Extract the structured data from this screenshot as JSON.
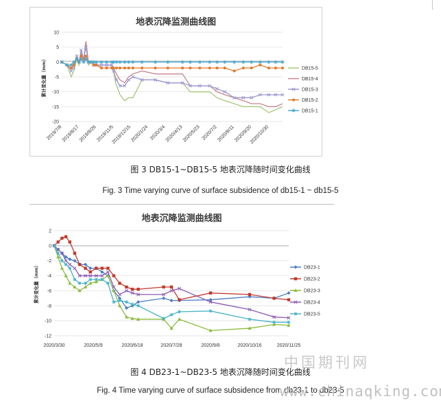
{
  "charts": [
    {
      "id": "chart1",
      "title": "地表沉降监测曲线图",
      "caption_cn": "图 3 DB15-1~DB15-5 地表沉降随时间变化曲线",
      "caption_en": "Fig. 3 Time varying curve of surface subsidence of db15-1 ~ db15-5",
      "ylabel": "累计变化量（mm）"
    },
    {
      "id": "chart2",
      "title": "地表沉降监测曲线图",
      "caption_cn": "图 4 DB23-1~DB23-5 地表沉降随时间变化曲线",
      "caption_en": "Fig. 4 Time varying curve of surface subsidence from db23-1 to db23-5",
      "ylabel": "累计变化量（mm）"
    }
  ],
  "watermark": {
    "cn": "中国期刊网",
    "url": "www.chinaqking.com"
  },
  "chart_data": [
    {
      "type": "line",
      "title": "地表沉降监测曲线图",
      "ylabel": "累计变化量（mm）",
      "ylim": [
        -20,
        10
      ],
      "yticks": [
        10,
        5,
        0,
        -5,
        -10,
        -15,
        -20
      ],
      "x_range": [
        "2019-07-08",
        "2020-12-01"
      ],
      "x_tick_labels": [
        "2019/7/8",
        "2019/8/17",
        "2019/9/26",
        "2019/11/5",
        "2019/12/15",
        "2020/1/24",
        "2020/3/4",
        "2020/4/13",
        "2020/5/23",
        "2020/7/2",
        "2020/8/11",
        "2020/9/20",
        "2020/10/30"
      ],
      "grid": true,
      "legend": "right",
      "series": [
        {
          "name": "DB15-5",
          "color": "#a8c67a",
          "marker": "none",
          "x": [
            "2019-07-08",
            "2019-07-20",
            "2019-07-30",
            "2019-08-05",
            "2019-08-12",
            "2019-08-17",
            "2019-08-22",
            "2019-08-28",
            "2019-09-02",
            "2019-09-08",
            "2019-09-14",
            "2019-09-20",
            "2019-09-26",
            "2019-10-08",
            "2019-10-20",
            "2019-11-01",
            "2019-11-05",
            "2019-11-10",
            "2019-11-20",
            "2019-12-01",
            "2019-12-10",
            "2019-12-20",
            "2020-01-10",
            "2020-02-10",
            "2020-03-10",
            "2020-04-13",
            "2020-05-01",
            "2020-05-23",
            "2020-06-15",
            "2020-07-02",
            "2020-07-20",
            "2020-08-11",
            "2020-09-01",
            "2020-09-20",
            "2020-10-10",
            "2020-10-30",
            "2020-11-15",
            "2020-12-01"
          ],
          "y": [
            0,
            -1,
            -5,
            -3,
            1,
            -1,
            3,
            1,
            6,
            -1,
            0,
            -1,
            -1,
            -1,
            -1,
            -1,
            -3,
            -7,
            -11,
            -13,
            -12,
            -12,
            -6,
            -6,
            -7,
            -7,
            -10,
            -10,
            -10,
            -12,
            -13,
            -14,
            -15,
            -15,
            -15,
            -17,
            -16,
            -15
          ]
        },
        {
          "name": "DB15-4",
          "color": "#c8878f",
          "marker": "none",
          "x": [
            "2019-07-08",
            "2019-07-20",
            "2019-07-30",
            "2019-08-05",
            "2019-08-12",
            "2019-08-17",
            "2019-08-22",
            "2019-08-28",
            "2019-09-02",
            "2019-09-08",
            "2019-09-14",
            "2019-09-20",
            "2019-09-26",
            "2019-10-08",
            "2019-10-20",
            "2019-11-01",
            "2019-11-05",
            "2019-11-12",
            "2019-11-20",
            "2019-12-01",
            "2019-12-10",
            "2019-12-20",
            "2020-01-10",
            "2020-02-10",
            "2020-03-10",
            "2020-04-13",
            "2020-05-01",
            "2020-05-23",
            "2020-06-15",
            "2020-07-02",
            "2020-07-20",
            "2020-08-11",
            "2020-09-01",
            "2020-09-20",
            "2020-10-10",
            "2020-10-30",
            "2020-11-15",
            "2020-12-01"
          ],
          "y": [
            0,
            -1,
            -2,
            -1,
            2,
            0,
            3,
            1,
            7,
            0,
            0,
            -1,
            -1,
            -1,
            -1,
            -1,
            -2,
            -4,
            -6,
            -7,
            -5,
            -4,
            -3,
            -4,
            -4,
            -4,
            -8,
            -8,
            -8,
            -10,
            -11,
            -12,
            -13,
            -14,
            -14,
            -15,
            -15,
            -14
          ]
        },
        {
          "name": "DB15-3",
          "color": "#9a97d3",
          "marker": "x",
          "x": [
            "2019-07-08",
            "2019-07-20",
            "2019-07-30",
            "2019-08-05",
            "2019-08-12",
            "2019-08-17",
            "2019-08-22",
            "2019-08-28",
            "2019-09-02",
            "2019-09-08",
            "2019-09-14",
            "2019-09-20",
            "2019-09-26",
            "2019-10-08",
            "2019-10-20",
            "2019-11-01",
            "2019-11-05",
            "2019-11-12",
            "2019-11-20",
            "2019-12-01",
            "2019-12-10",
            "2019-12-20",
            "2020-01-10",
            "2020-02-10",
            "2020-03-10",
            "2020-04-13",
            "2020-05-01",
            "2020-05-23",
            "2020-06-15",
            "2020-07-02",
            "2020-07-20",
            "2020-08-11",
            "2020-09-01",
            "2020-09-20",
            "2020-10-10",
            "2020-10-30",
            "2020-11-15",
            "2020-12-01"
          ],
          "y": [
            0,
            -1,
            -3,
            -2,
            2,
            0,
            4,
            1,
            5,
            0,
            0,
            -1,
            -1,
            -1,
            -1,
            -1,
            -3,
            -6,
            -8,
            -8,
            -6,
            -5,
            -6,
            -6,
            -7,
            -7,
            -8,
            -8,
            -8,
            -9,
            -10,
            -12,
            -12,
            -12,
            -11,
            -11,
            -11,
            -11
          ]
        },
        {
          "name": "DB15-2",
          "color": "#e07a2a",
          "marker": "dot",
          "x": [
            "2019-07-08",
            "2019-07-20",
            "2019-07-30",
            "2019-08-05",
            "2019-08-12",
            "2019-08-17",
            "2019-08-22",
            "2019-08-28",
            "2019-09-02",
            "2019-09-08",
            "2019-09-14",
            "2019-09-20",
            "2019-09-26",
            "2019-10-08",
            "2019-10-20",
            "2019-11-01",
            "2019-11-05",
            "2019-11-12",
            "2019-11-20",
            "2019-12-01",
            "2019-12-10",
            "2019-12-20",
            "2020-01-10",
            "2020-02-10",
            "2020-03-10",
            "2020-04-13",
            "2020-05-01",
            "2020-05-23",
            "2020-06-15",
            "2020-07-02",
            "2020-07-20",
            "2020-08-11",
            "2020-09-01",
            "2020-09-20",
            "2020-10-10",
            "2020-10-30",
            "2020-11-15",
            "2020-12-01"
          ],
          "y": [
            0,
            -1,
            -2,
            -1,
            1,
            0,
            2,
            1,
            2,
            0,
            0,
            -1,
            -1,
            -2,
            -2,
            -2,
            -2,
            -2,
            -2,
            -2,
            -2,
            -2,
            -2,
            -2,
            -2,
            -2,
            -2,
            -2,
            -2,
            -2,
            -2,
            -3,
            -2,
            -2,
            -1,
            -2,
            -2,
            -2
          ]
        },
        {
          "name": "DB15-1",
          "color": "#4aa8cf",
          "marker": "star",
          "x": [
            "2019-07-08",
            "2019-07-20",
            "2019-07-30",
            "2019-08-05",
            "2019-08-12",
            "2019-08-17",
            "2019-08-22",
            "2019-08-28",
            "2019-09-02",
            "2019-09-08",
            "2019-09-14",
            "2019-09-20",
            "2019-09-26",
            "2019-10-08",
            "2019-10-20",
            "2019-11-01",
            "2019-11-05",
            "2019-11-12",
            "2019-11-20",
            "2019-12-01",
            "2019-12-10",
            "2019-12-20",
            "2020-01-10",
            "2020-02-10",
            "2020-03-10",
            "2020-04-13",
            "2020-05-01",
            "2020-05-23",
            "2020-06-15",
            "2020-07-02",
            "2020-07-20",
            "2020-08-11",
            "2020-09-01",
            "2020-09-20",
            "2020-10-10",
            "2020-10-30",
            "2020-11-15",
            "2020-12-01"
          ],
          "y": [
            0,
            -1,
            -1,
            0,
            1,
            0,
            1,
            0,
            1,
            0,
            0,
            0,
            0,
            0,
            0,
            0,
            0,
            0,
            0,
            0,
            0,
            0,
            0,
            0,
            0,
            0,
            0,
            0,
            0,
            0,
            0,
            0,
            0,
            0,
            0,
            0,
            0,
            0
          ]
        }
      ]
    },
    {
      "type": "line",
      "title": "地表沉降监测曲线图",
      "ylabel": "累计变化量（mm）",
      "ylim": [
        -12,
        2
      ],
      "yticks": [
        2,
        0,
        -2,
        -4,
        -6,
        -8,
        -10,
        -12
      ],
      "x_range": [
        "2020-03-30",
        "2020-11-25"
      ],
      "x_tick_labels": [
        "2020/3/30",
        "2020/5/9",
        "2020/6/18",
        "2020/7/28",
        "2020/9/6",
        "2020/10/16",
        "2020/11/25"
      ],
      "grid": true,
      "legend": "right",
      "series": [
        {
          "name": "DB23-1",
          "color": "#4a7ec2",
          "marker": "diamond",
          "x": [
            "2020-03-30",
            "2020-04-03",
            "2020-04-07",
            "2020-04-11",
            "2020-04-15",
            "2020-04-20",
            "2020-04-25",
            "2020-05-01",
            "2020-05-06",
            "2020-05-12",
            "2020-05-18",
            "2020-05-24",
            "2020-05-30",
            "2020-06-05",
            "2020-06-12",
            "2020-06-18",
            "2020-06-24",
            "2020-07-20",
            "2020-07-28",
            "2020-08-05",
            "2020-09-06",
            "2020-10-16",
            "2020-11-10",
            "2020-11-25"
          ],
          "y": [
            0,
            -0.5,
            -1,
            -1.5,
            -1.8,
            -2,
            -2.5,
            -2.5,
            -3,
            -3,
            -3.5,
            -4,
            -6,
            -7,
            -8.3,
            -8,
            -7.5,
            -7,
            -7.3,
            -7.3,
            -7.2,
            -6.8,
            -7,
            -6.3
          ]
        },
        {
          "name": "DB23-2",
          "color": "#c0392b",
          "marker": "square",
          "x": [
            "2020-03-30",
            "2020-04-03",
            "2020-04-07",
            "2020-04-11",
            "2020-04-15",
            "2020-04-20",
            "2020-04-25",
            "2020-05-01",
            "2020-05-06",
            "2020-05-12",
            "2020-05-18",
            "2020-05-24",
            "2020-05-30",
            "2020-06-05",
            "2020-06-12",
            "2020-06-18",
            "2020-06-24",
            "2020-07-20",
            "2020-07-28",
            "2020-08-05",
            "2020-09-06",
            "2020-10-16",
            "2020-11-10",
            "2020-11-25"
          ],
          "y": [
            0,
            0.5,
            1,
            1.2,
            0.5,
            -1,
            -2.5,
            -3,
            -3.5,
            -3,
            -3,
            -3,
            -4,
            -5,
            -5.5,
            -5.8,
            -5.8,
            -5.5,
            -5.5,
            -7.2,
            -6.3,
            -6.5,
            -7,
            -7.2
          ]
        },
        {
          "name": "DB23-3",
          "color": "#8cbb3e",
          "marker": "triangle",
          "x": [
            "2020-03-30",
            "2020-04-03",
            "2020-04-07",
            "2020-04-11",
            "2020-04-15",
            "2020-04-20",
            "2020-04-25",
            "2020-05-01",
            "2020-05-06",
            "2020-05-12",
            "2020-05-18",
            "2020-05-24",
            "2020-05-30",
            "2020-06-05",
            "2020-06-12",
            "2020-06-18",
            "2020-06-24",
            "2020-07-20",
            "2020-07-28",
            "2020-08-05",
            "2020-09-06",
            "2020-10-16",
            "2020-11-10",
            "2020-11-25"
          ],
          "y": [
            0,
            -1.5,
            -3,
            -4,
            -5,
            -5.5,
            -6,
            -5.5,
            -5,
            -4.8,
            -4.5,
            -4,
            -6,
            -8,
            -9.5,
            -9.7,
            -9.8,
            -9.8,
            -11,
            -9.8,
            -11.3,
            -11,
            -10.5,
            -10.6
          ]
        },
        {
          "name": "DB23-4",
          "color": "#8a5ab3",
          "marker": "x",
          "x": [
            "2020-03-30",
            "2020-04-03",
            "2020-04-07",
            "2020-04-11",
            "2020-04-15",
            "2020-04-20",
            "2020-04-25",
            "2020-05-01",
            "2020-05-06",
            "2020-05-12",
            "2020-05-18",
            "2020-05-24",
            "2020-05-30",
            "2020-06-05",
            "2020-06-12",
            "2020-06-18",
            "2020-06-24",
            "2020-07-20",
            "2020-07-28",
            "2020-08-05",
            "2020-09-06",
            "2020-10-16",
            "2020-11-10",
            "2020-11-25"
          ],
          "y": [
            0,
            -0.5,
            -1,
            -2,
            -2.5,
            -3,
            -4,
            -4,
            -4,
            -4,
            -4,
            -3.5,
            -5.5,
            -6.5,
            -6,
            -6.3,
            -6.5,
            -6.5,
            -6,
            -5.7,
            -7.5,
            -8.5,
            -9.5,
            -9.6
          ]
        },
        {
          "name": "DB23-5",
          "color": "#47b2c8",
          "marker": "star",
          "x": [
            "2020-03-30",
            "2020-04-03",
            "2020-04-07",
            "2020-04-11",
            "2020-04-15",
            "2020-04-20",
            "2020-04-25",
            "2020-05-01",
            "2020-05-06",
            "2020-05-12",
            "2020-05-18",
            "2020-05-24",
            "2020-05-30",
            "2020-06-05",
            "2020-06-12",
            "2020-06-18",
            "2020-06-24",
            "2020-07-20",
            "2020-07-28",
            "2020-08-05",
            "2020-09-06",
            "2020-10-16",
            "2020-11-10",
            "2020-11-25"
          ],
          "y": [
            0,
            -1,
            -2,
            -2.5,
            -3,
            -4.5,
            -5,
            -5,
            -4.5,
            -4.5,
            -4.5,
            -5,
            -7.5,
            -7.3,
            -7.5,
            -7.8,
            -8,
            -9.7,
            -9.2,
            -8.8,
            -8.7,
            -9.8,
            -10.2,
            -10.2
          ]
        }
      ]
    }
  ]
}
